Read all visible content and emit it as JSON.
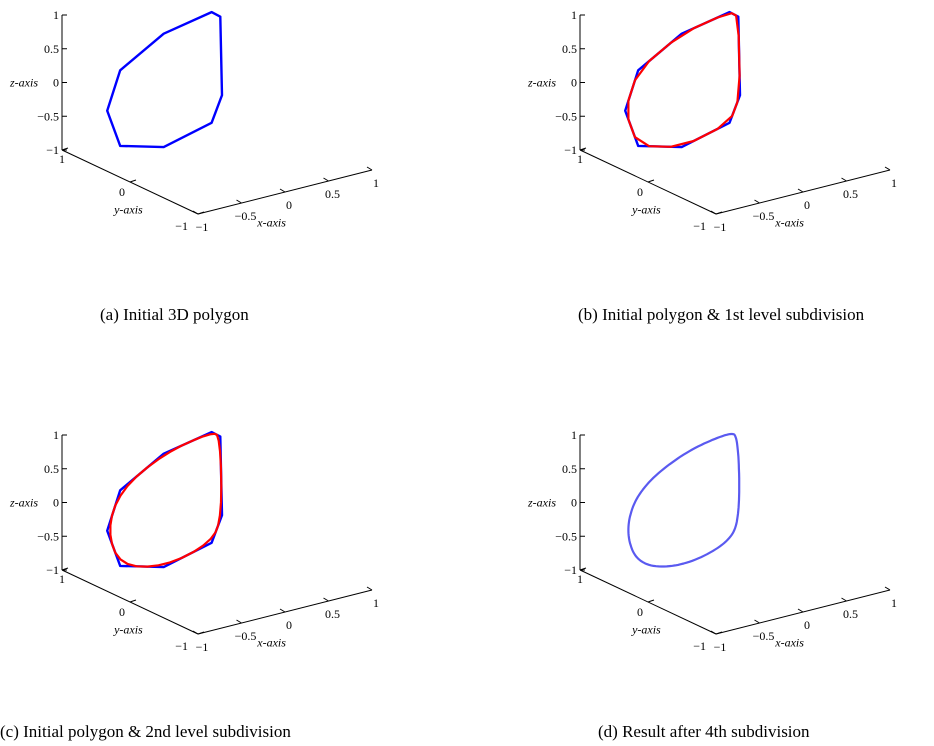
{
  "chart_data": [
    {
      "type": "line3d",
      "caption": "(a) Initial 3D polygon",
      "xlabel": "x-axis",
      "ylabel": "y-axis",
      "zlabel": "z-axis",
      "xlim": [
        -1,
        1
      ],
      "ylim": [
        -1,
        1
      ],
      "zlim": [
        -1,
        1
      ],
      "xticks": [
        "−1",
        "−0.5",
        "0",
        "0.5",
        "1"
      ],
      "yticks": [
        "−1",
        "0",
        "1"
      ],
      "zticks": [
        "−1",
        "−0.5",
        "0",
        "0.5",
        "1"
      ],
      "series": [
        {
          "color": "#0000ff",
          "kind": "polygon",
          "points": [
            [
              -0.95,
              0.4,
              -0.15
            ],
            [
              -0.8,
              0.4,
              0.4
            ],
            [
              -0.3,
              0.4,
              0.78
            ],
            [
              0.25,
              0.4,
              0.92
            ],
            [
              0.35,
              0.4,
              0.82
            ],
            [
              0.37,
              0.4,
              -0.35
            ],
            [
              0.25,
              0.4,
              -0.72
            ],
            [
              -0.3,
              0.4,
              -0.9
            ],
            [
              -0.8,
              0.4,
              -0.72
            ]
          ]
        }
      ]
    },
    {
      "type": "line3d",
      "caption": "(b) Initial polygon & 1st level subdivision",
      "xlabel": "x-axis",
      "ylabel": "y-axis",
      "zlabel": "z-axis",
      "xlim": [
        -1,
        1
      ],
      "ylim": [
        -1,
        1
      ],
      "zlim": [
        -1,
        1
      ],
      "xticks": [
        "−1",
        "−0.5",
        "0",
        "0.5",
        "1"
      ],
      "yticks": [
        "−1",
        "0",
        "1"
      ],
      "zticks": [
        "−1",
        "−0.5",
        "0",
        "0.5",
        "1"
      ],
      "series": [
        {
          "color": "#0000ff",
          "kind": "polygon",
          "points": [
            [
              -0.95,
              0.4,
              -0.15
            ],
            [
              -0.8,
              0.4,
              0.4
            ],
            [
              -0.3,
              0.4,
              0.78
            ],
            [
              0.25,
              0.4,
              0.92
            ],
            [
              0.35,
              0.4,
              0.82
            ],
            [
              0.37,
              0.4,
              -0.35
            ],
            [
              0.25,
              0.4,
              -0.72
            ],
            [
              -0.3,
              0.4,
              -0.9
            ],
            [
              -0.8,
              0.4,
              -0.72
            ]
          ]
        },
        {
          "color": "#ff0000",
          "kind": "smooth",
          "subdivision_level": 1
        }
      ]
    },
    {
      "type": "line3d",
      "caption": "(c) Initial polygon & 2nd level subdivision",
      "xlabel": "x-axis",
      "ylabel": "y-axis",
      "zlabel": "z-axis",
      "xlim": [
        -1,
        1
      ],
      "ylim": [
        -1,
        1
      ],
      "zlim": [
        -1,
        1
      ],
      "xticks": [
        "−1",
        "−0.5",
        "0",
        "0.5",
        "1"
      ],
      "yticks": [
        "−1",
        "0",
        "1"
      ],
      "zticks": [
        "−1",
        "−0.5",
        "0",
        "0.5",
        "1"
      ],
      "series": [
        {
          "color": "#0000ff",
          "kind": "polygon",
          "points": [
            [
              -0.95,
              0.4,
              -0.15
            ],
            [
              -0.8,
              0.4,
              0.4
            ],
            [
              -0.3,
              0.4,
              0.78
            ],
            [
              0.25,
              0.4,
              0.92
            ],
            [
              0.35,
              0.4,
              0.82
            ],
            [
              0.37,
              0.4,
              -0.35
            ],
            [
              0.25,
              0.4,
              -0.72
            ],
            [
              -0.3,
              0.4,
              -0.9
            ],
            [
              -0.8,
              0.4,
              -0.72
            ]
          ]
        },
        {
          "color": "#ff0000",
          "kind": "smooth",
          "subdivision_level": 2
        }
      ]
    },
    {
      "type": "line3d",
      "caption": "(d) Result after 4th subdivision",
      "xlabel": "x-axis",
      "ylabel": "y-axis",
      "zlabel": "z-axis",
      "xlim": [
        -1,
        1
      ],
      "ylim": [
        -1,
        1
      ],
      "zlim": [
        -1,
        1
      ],
      "xticks": [
        "−1",
        "−0.5",
        "0",
        "0.5",
        "1"
      ],
      "yticks": [
        "−1",
        "0",
        "1"
      ],
      "zticks": [
        "−1",
        "−0.5",
        "0",
        "0.5",
        "1"
      ],
      "series": [
        {
          "color": "#5a5af0",
          "kind": "smooth",
          "subdivision_level": 4,
          "points": [
            [
              -0.95,
              0.4,
              -0.15
            ],
            [
              -0.8,
              0.4,
              0.4
            ],
            [
              -0.3,
              0.4,
              0.78
            ],
            [
              0.25,
              0.4,
              0.92
            ],
            [
              0.35,
              0.4,
              0.82
            ],
            [
              0.37,
              0.4,
              -0.35
            ],
            [
              0.25,
              0.4,
              -0.72
            ],
            [
              -0.3,
              0.4,
              -0.9
            ],
            [
              -0.8,
              0.4,
              -0.72
            ]
          ]
        }
      ]
    }
  ]
}
